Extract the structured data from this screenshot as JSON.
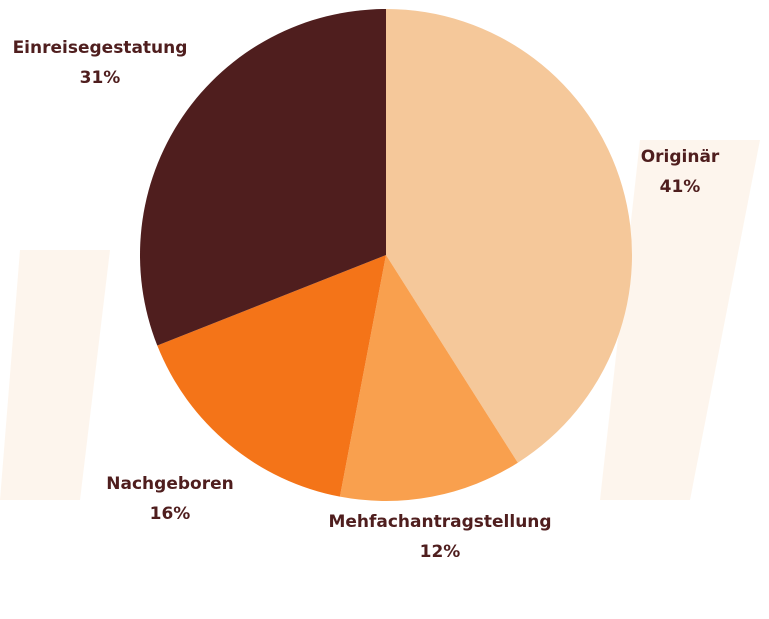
{
  "chart_data": {
    "type": "pie",
    "categories": [
      "Originär",
      "Mehfachantragstellung",
      "Nachgeboren",
      "Einreisegestatung"
    ],
    "values": [
      41,
      12,
      16,
      31
    ],
    "value_labels": [
      "41%",
      "12%",
      "16%",
      "31%"
    ],
    "colors": [
      "#f5c89a",
      "#f9a04e",
      "#f47418",
      "#4f1e1e"
    ]
  }
}
